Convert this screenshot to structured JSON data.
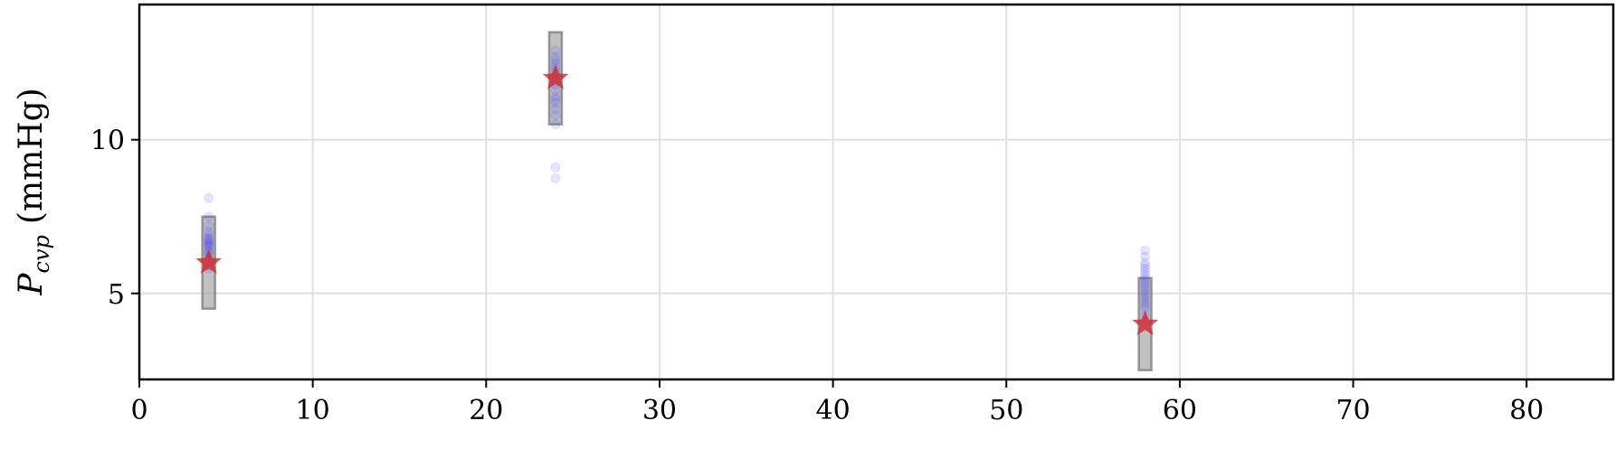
{
  "chart_data": {
    "type": "scatter",
    "title": "",
    "xlabel": "",
    "ylabel": "P",
    "ylabel_subscript": "cvp",
    "ylabel_unit": "(mmHg)",
    "xlim": [
      0,
      85
    ],
    "ylim": [
      2.2,
      14.4
    ],
    "xticks": [
      0,
      10,
      20,
      30,
      40,
      50,
      60,
      70,
      80
    ],
    "yticks": [
      5,
      10
    ],
    "grid": true,
    "legend": "none",
    "colors": {
      "samples": "#3333ff",
      "reference": "#d62728",
      "range_box": "#a0a0a0"
    },
    "ranges": [
      {
        "x": 4,
        "low": 4.5,
        "high": 7.5
      },
      {
        "x": 24,
        "low": 10.5,
        "high": 13.5
      },
      {
        "x": 58,
        "low": 2.5,
        "high": 5.5
      }
    ],
    "reference_points": [
      {
        "x": 4,
        "y": 6
      },
      {
        "x": 24,
        "y": 12
      },
      {
        "x": 58,
        "y": 4
      }
    ],
    "samples": [
      {
        "x": 4,
        "y": [
          8.1,
          7.5,
          7.2,
          7.0,
          6.9,
          6.8,
          6.75,
          6.7,
          6.6,
          6.5,
          6.4,
          6.3,
          6.2,
          6.1,
          6.0,
          5.9,
          5.8,
          6.55,
          6.65,
          6.35
        ]
      },
      {
        "x": 24,
        "y": [
          12.9,
          12.7,
          12.5,
          12.4,
          12.3,
          12.2,
          12.1,
          12.0,
          11.9,
          11.8,
          11.6,
          11.4,
          11.2,
          11.0,
          10.8,
          10.5,
          9.1,
          8.75,
          12.6,
          11.3
        ]
      },
      {
        "x": 58,
        "y": [
          6.4,
          6.2,
          6.0,
          5.9,
          5.8,
          5.7,
          5.6,
          5.5,
          5.4,
          5.3,
          5.2,
          5.1,
          5.0,
          4.9,
          4.8,
          4.7,
          4.6,
          4.5,
          4.3,
          4.1
        ]
      }
    ]
  }
}
